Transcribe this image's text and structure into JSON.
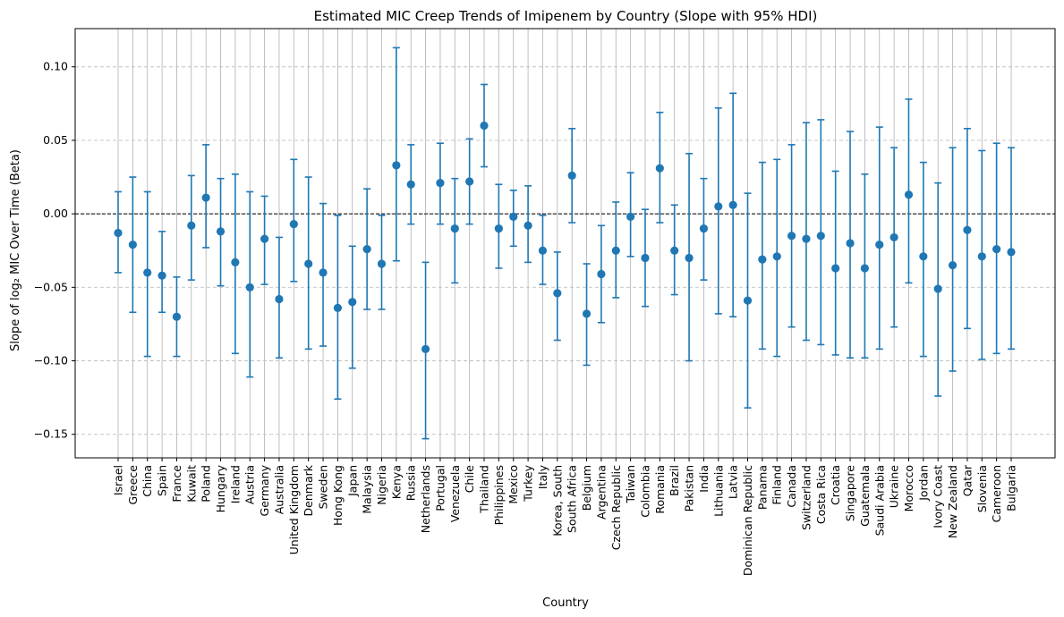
{
  "chart_data": {
    "type": "errorbar",
    "title": "Estimated MIC Creep Trends of Imipenem by Country (Slope with 95% HDI)",
    "xlabel": "Country",
    "ylabel": "Slope of log₂ MIC Over Time (Beta)",
    "ylim": [
      -0.166,
      0.126
    ],
    "yticks": [
      -0.15,
      -0.1,
      -0.05,
      0.0,
      0.05,
      0.1
    ],
    "ytick_labels": [
      "−0.15",
      "−0.10",
      "−0.05",
      "0.00",
      "0.05",
      "0.10"
    ],
    "reference_line": 0,
    "grid": true,
    "color": "#1f77b4",
    "categories": [
      "Israel",
      "Greece",
      "China",
      "Spain",
      "France",
      "Kuwait",
      "Poland",
      "Hungary",
      "Ireland",
      "Austria",
      "Germany",
      "Australia",
      "United Kingdom",
      "Denmark",
      "Sweden",
      "Hong Kong",
      "Japan",
      "Malaysia",
      "Nigeria",
      "Kenya",
      "Russia",
      "Netherlands",
      "Portugal",
      "Venezuela",
      "Chile",
      "Thailand",
      "Philippines",
      "Mexico",
      "Turkey",
      "Italy",
      "Korea, South",
      "South Africa",
      "Belgium",
      "Argentina",
      "Czech Republic",
      "Taiwan",
      "Colombia",
      "Romania",
      "Brazil",
      "Pakistan",
      "India",
      "Lithuania",
      "Latvia",
      "Dominican Republic",
      "Panama",
      "Finland",
      "Canada",
      "Switzerland",
      "Costa Rica",
      "Croatia",
      "Singapore",
      "Guatemala",
      "Saudi Arabia",
      "Ukraine",
      "Morocco",
      "Jordan",
      "Ivory Coast",
      "New Zealand",
      "Qatar",
      "Slovenia",
      "Cameroon",
      "Bulgaria"
    ],
    "values": [
      -0.013,
      -0.021,
      -0.04,
      -0.042,
      -0.07,
      -0.008,
      0.011,
      -0.012,
      -0.033,
      -0.05,
      -0.017,
      -0.058,
      -0.007,
      -0.034,
      -0.04,
      -0.064,
      -0.06,
      -0.024,
      -0.034,
      0.033,
      0.02,
      -0.092,
      0.021,
      -0.01,
      0.022,
      0.06,
      -0.01,
      -0.002,
      -0.008,
      -0.025,
      -0.054,
      0.026,
      -0.068,
      -0.041,
      -0.025,
      -0.002,
      -0.03,
      0.031,
      -0.025,
      -0.03,
      -0.01,
      0.005,
      0.006,
      -0.059,
      -0.031,
      -0.029,
      -0.015,
      -0.017,
      -0.015,
      -0.037,
      -0.02,
      -0.037,
      -0.021,
      -0.016,
      0.013,
      -0.029,
      -0.051,
      -0.035,
      -0.011,
      -0.029,
      -0.024,
      -0.026
    ],
    "lower": [
      -0.04,
      -0.067,
      -0.097,
      -0.067,
      -0.097,
      -0.045,
      -0.023,
      -0.049,
      -0.095,
      -0.111,
      -0.048,
      -0.098,
      -0.046,
      -0.092,
      -0.09,
      -0.126,
      -0.105,
      -0.065,
      -0.065,
      -0.032,
      -0.007,
      -0.153,
      -0.007,
      -0.047,
      -0.007,
      0.032,
      -0.037,
      -0.022,
      -0.033,
      -0.048,
      -0.086,
      -0.006,
      -0.103,
      -0.074,
      -0.057,
      -0.029,
      -0.063,
      -0.006,
      -0.055,
      -0.1,
      -0.045,
      -0.068,
      -0.07,
      -0.132,
      -0.092,
      -0.097,
      -0.077,
      -0.086,
      -0.089,
      -0.096,
      -0.098,
      -0.098,
      -0.092,
      -0.077,
      -0.047,
      -0.097,
      -0.124,
      -0.107,
      -0.078,
      -0.099,
      -0.095,
      -0.092
    ],
    "upper": [
      0.015,
      0.025,
      0.015,
      -0.012,
      -0.043,
      0.026,
      0.047,
      0.024,
      0.027,
      0.015,
      0.012,
      -0.016,
      0.037,
      0.025,
      0.007,
      -0.001,
      -0.022,
      0.017,
      -0.001,
      0.113,
      0.047,
      -0.033,
      0.048,
      0.024,
      0.051,
      0.088,
      0.02,
      0.016,
      0.019,
      -0.001,
      -0.026,
      0.058,
      -0.034,
      -0.008,
      0.008,
      0.028,
      0.003,
      0.069,
      0.006,
      0.041,
      0.024,
      0.072,
      0.082,
      0.014,
      0.035,
      0.037,
      0.047,
      0.062,
      0.064,
      0.029,
      0.056,
      0.027,
      0.059,
      0.045,
      0.078,
      0.035,
      0.021,
      0.045,
      0.058,
      0.043,
      0.048,
      0.045
    ]
  }
}
